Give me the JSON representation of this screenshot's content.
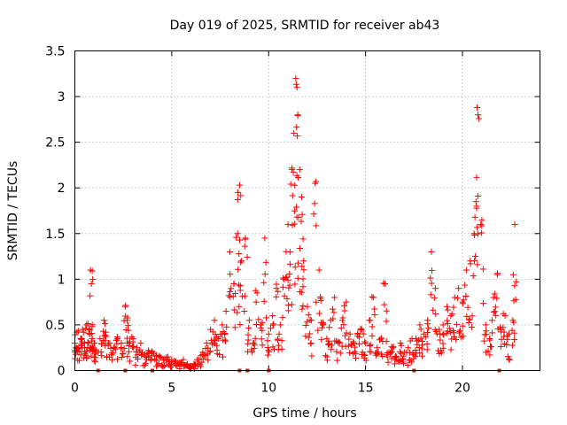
{
  "chart_data": {
    "type": "scatter",
    "title": "Day 019 of 2025, SRMTID for receiver ab43",
    "xlabel": "GPS time / hours",
    "ylabel": "SRMTID / TECUs",
    "xlim": [
      0,
      24
    ],
    "ylim": [
      0,
      3.5
    ],
    "grid": true,
    "marker": "+",
    "color": "#ff0000",
    "xticks": [
      0,
      5,
      10,
      15,
      20
    ],
    "xtick_labels": [
      "0",
      "5",
      "10",
      "15",
      "20"
    ],
    "yticks": [
      0,
      0.5,
      1,
      1.5,
      2,
      2.5,
      3,
      3.5
    ],
    "ytick_labels": [
      "0",
      "0.5",
      "1",
      "1.5",
      "2",
      "2.5",
      "3",
      "3.5"
    ],
    "series": [
      {
        "name": "SRMTID",
        "x": [
          0.0,
          0.1,
          0.2,
          0.3,
          0.4,
          0.5,
          0.6,
          0.7,
          0.8,
          0.85,
          0.9,
          1.0,
          1.1,
          1.3,
          1.5,
          1.6,
          1.8,
          2.0,
          2.2,
          2.4,
          2.6,
          2.7,
          2.8,
          3.0,
          3.2,
          3.4,
          3.6,
          3.8,
          4.0,
          4.2,
          4.4,
          4.6,
          4.8,
          5.0,
          5.2,
          5.4,
          5.6,
          5.8,
          6.0,
          6.2,
          6.4,
          6.6,
          6.8,
          7.0,
          7.2,
          7.4,
          7.6,
          7.8,
          8.0,
          8.2,
          8.4,
          8.5,
          8.6,
          8.8,
          9.0,
          9.2,
          9.4,
          9.6,
          9.8,
          10.0,
          10.2,
          10.4,
          10.6,
          10.8,
          11.0,
          11.1,
          11.2,
          11.3,
          11.4,
          11.5,
          11.6,
          11.7,
          11.8,
          12.0,
          12.2,
          12.4,
          12.6,
          12.8,
          13.0,
          13.2,
          13.4,
          13.6,
          13.8,
          14.0,
          14.2,
          14.4,
          14.6,
          14.8,
          15.0,
          15.2,
          15.4,
          15.6,
          15.8,
          16.0,
          16.2,
          16.4,
          16.6,
          16.8,
          17.0,
          17.2,
          17.4,
          17.6,
          17.8,
          18.0,
          18.2,
          18.4,
          18.6,
          18.8,
          19.0,
          19.2,
          19.4,
          19.6,
          19.8,
          20.0,
          20.2,
          20.4,
          20.6,
          20.7,
          20.8,
          21.0,
          21.2,
          21.4,
          21.6,
          21.8,
          22.0,
          22.2,
          22.4,
          22.6,
          22.7
        ],
        "y": [
          0.3,
          0.42,
          0.25,
          0.35,
          0.45,
          0.3,
          0.5,
          0.3,
          1.1,
          0.95,
          0.35,
          0.3,
          0.22,
          0.35,
          0.55,
          0.42,
          0.3,
          0.25,
          0.35,
          0.3,
          0.7,
          0.55,
          0.3,
          0.35,
          0.25,
          0.3,
          0.18,
          0.22,
          0.2,
          0.16,
          0.15,
          0.13,
          0.15,
          0.12,
          0.1,
          0.08,
          0.12,
          0.07,
          0.05,
          0.07,
          0.12,
          0.2,
          0.3,
          0.45,
          0.55,
          0.35,
          0.5,
          0.65,
          1.3,
          0.95,
          1.5,
          2.03,
          1.2,
          1.45,
          0.55,
          0.3,
          0.85,
          0.5,
          1.45,
          0.4,
          0.6,
          0.9,
          0.5,
          1.0,
          1.6,
          1.3,
          2.2,
          2.6,
          3.2,
          2.8,
          2.2,
          1.9,
          1.2,
          0.7,
          0.55,
          2.05,
          1.1,
          0.5,
          0.35,
          0.55,
          0.8,
          0.3,
          0.55,
          0.75,
          0.4,
          0.3,
          0.4,
          0.45,
          0.3,
          0.55,
          0.8,
          0.25,
          0.35,
          0.95,
          0.2,
          0.25,
          0.15,
          0.3,
          0.2,
          0.25,
          0.35,
          0.35,
          0.5,
          0.4,
          0.55,
          1.3,
          0.9,
          0.45,
          0.5,
          0.7,
          0.6,
          0.8,
          0.9,
          0.75,
          1.1,
          1.2,
          1.5,
          1.85,
          2.8,
          1.65,
          0.5,
          0.35,
          0.8,
          1.05,
          0.45,
          0.6,
          0.4,
          0.55,
          1.6
        ],
        "x_near_zero": [
          1.2,
          2.6,
          4.0,
          8.5,
          8.9,
          10.0,
          17.5,
          21.9
        ]
      }
    ]
  }
}
